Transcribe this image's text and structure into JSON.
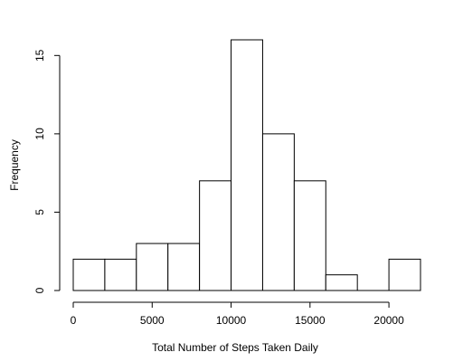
{
  "chart_data": {
    "type": "bar",
    "title": "",
    "xlabel": "Total Number of Steps Taken Daily",
    "ylabel": "Frequency",
    "bins": [
      {
        "start": 0,
        "end": 2000,
        "count": 2
      },
      {
        "start": 2000,
        "end": 4000,
        "count": 2
      },
      {
        "start": 4000,
        "end": 6000,
        "count": 3
      },
      {
        "start": 6000,
        "end": 8000,
        "count": 3
      },
      {
        "start": 8000,
        "end": 10000,
        "count": 7
      },
      {
        "start": 10000,
        "end": 12000,
        "count": 16
      },
      {
        "start": 12000,
        "end": 14000,
        "count": 10
      },
      {
        "start": 14000,
        "end": 16000,
        "count": 7
      },
      {
        "start": 16000,
        "end": 18000,
        "count": 1
      },
      {
        "start": 18000,
        "end": 20000,
        "count": 0
      },
      {
        "start": 20000,
        "end": 22000,
        "count": 2
      }
    ],
    "xticks": [
      0,
      5000,
      10000,
      15000,
      20000
    ],
    "yticks": [
      0,
      5,
      10,
      15
    ],
    "xlim": [
      0,
      22000
    ],
    "ylim": [
      0,
      16
    ],
    "grid": false,
    "legend": "none"
  }
}
